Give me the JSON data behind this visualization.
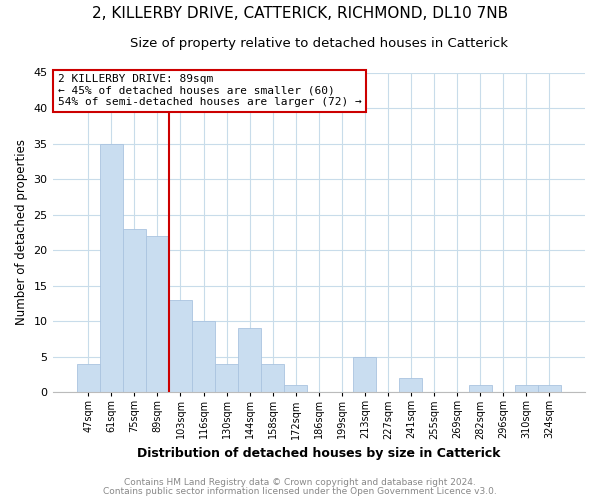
{
  "title": "2, KILLERBY DRIVE, CATTERICK, RICHMOND, DL10 7NB",
  "subtitle": "Size of property relative to detached houses in Catterick",
  "xlabel": "Distribution of detached houses by size in Catterick",
  "ylabel": "Number of detached properties",
  "bar_labels": [
    "47sqm",
    "61sqm",
    "75sqm",
    "89sqm",
    "103sqm",
    "116sqm",
    "130sqm",
    "144sqm",
    "158sqm",
    "172sqm",
    "186sqm",
    "199sqm",
    "213sqm",
    "227sqm",
    "241sqm",
    "255sqm",
    "269sqm",
    "282sqm",
    "296sqm",
    "310sqm",
    "324sqm"
  ],
  "bar_heights": [
    4,
    35,
    23,
    22,
    13,
    10,
    4,
    9,
    4,
    1,
    0,
    0,
    5,
    0,
    2,
    0,
    0,
    1,
    0,
    1,
    1
  ],
  "bar_color": "#c9ddf0",
  "bar_edge_color": "#aac4e0",
  "vline_x_index": 3,
  "vline_color": "#cc0000",
  "annotation_line1": "2 KILLERBY DRIVE: 89sqm",
  "annotation_line2": "← 45% of detached houses are smaller (60)",
  "annotation_line3": "54% of semi-detached houses are larger (72) →",
  "ylim": [
    0,
    45
  ],
  "yticks": [
    0,
    5,
    10,
    15,
    20,
    25,
    30,
    35,
    40,
    45
  ],
  "footer1": "Contains HM Land Registry data © Crown copyright and database right 2024.",
  "footer2": "Contains public sector information licensed under the Open Government Licence v3.0.",
  "bg_color": "#ffffff",
  "grid_color": "#c8dcea",
  "title_fontsize": 11,
  "subtitle_fontsize": 9.5,
  "xlabel_fontsize": 9,
  "ylabel_fontsize": 8.5,
  "footer_color": "#888888",
  "footer_fontsize": 6.5
}
